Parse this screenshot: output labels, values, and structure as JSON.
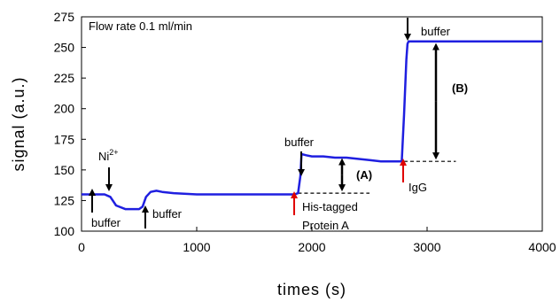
{
  "chart_data": {
    "type": "line",
    "title": "",
    "xlabel": "times (s)",
    "ylabel": "signal (a.u.)",
    "xlim": [
      0,
      4000
    ],
    "ylim": [
      100,
      275
    ],
    "xticks": [
      0,
      1000,
      2000,
      3000,
      4000
    ],
    "yticks": [
      100,
      125,
      150,
      175,
      200,
      225,
      250,
      275
    ],
    "grid": false,
    "legend": "none",
    "line_color": "#1f1fe0",
    "box_text": "Flow rate 0.1 ml/min",
    "series": [
      {
        "x": [
          0,
          200,
          250,
          300,
          380,
          500,
          530,
          560,
          600,
          650,
          700,
          800,
          1000,
          1300,
          1600,
          1850,
          1880,
          1900,
          1910,
          1950,
          2000,
          2100,
          2200,
          2300,
          2400,
          2500,
          2600,
          2700,
          2780,
          2800,
          2820,
          2830,
          2840,
          3000,
          3500,
          4000
        ],
        "y": [
          130,
          130,
          128,
          121,
          118,
          118,
          120,
          128,
          132,
          133,
          132,
          131,
          130,
          130,
          130,
          130,
          131,
          145,
          163,
          162,
          161,
          161,
          160,
          160,
          159,
          158,
          157,
          157,
          157,
          195,
          240,
          253,
          255,
          255,
          255,
          255
        ]
      }
    ],
    "baselines": [
      {
        "y": 131,
        "x_start": 1880,
        "x_end": 2500
      },
      {
        "y": 157,
        "x_start": 2800,
        "x_end": 3250
      }
    ],
    "annotations": [
      {
        "text": "buffer",
        "x": 70,
        "y": 122,
        "arrow": "up",
        "arrow_color": "#000000"
      },
      {
        "text": "Ni",
        "sup": "2+",
        "x": 230,
        "y": 160,
        "arrow": "down",
        "arrow_color": "#000000"
      },
      {
        "text": "buffer",
        "x": 540,
        "y": 118,
        "arrow": "up",
        "arrow_color": "#000000"
      },
      {
        "text": "buffer",
        "x": 1880,
        "y": 188,
        "arrow": "down",
        "arrow_color": "#000000"
      },
      {
        "text": "His-tagged",
        "x": 1870,
        "y": 130,
        "arrow": "up",
        "arrow_color": "#e00000"
      },
      {
        "text": "Protein A",
        "x": 1870,
        "y": 130
      },
      {
        "text": "IgG",
        "x": 2790,
        "y": 157,
        "arrow": "up",
        "arrow_color": "#e00000"
      },
      {
        "text": "buffer",
        "x": 2840,
        "y": 282,
        "arrow": "down",
        "arrow_color": "#000000"
      },
      {
        "text": "(A)",
        "bold": true,
        "x": 2260,
        "y": 146,
        "double_arrow": [
          131,
          161
        ]
      },
      {
        "text": "(B)",
        "bold": true,
        "x": 3100,
        "y": 212,
        "double_arrow": [
          157,
          255
        ]
      }
    ]
  }
}
